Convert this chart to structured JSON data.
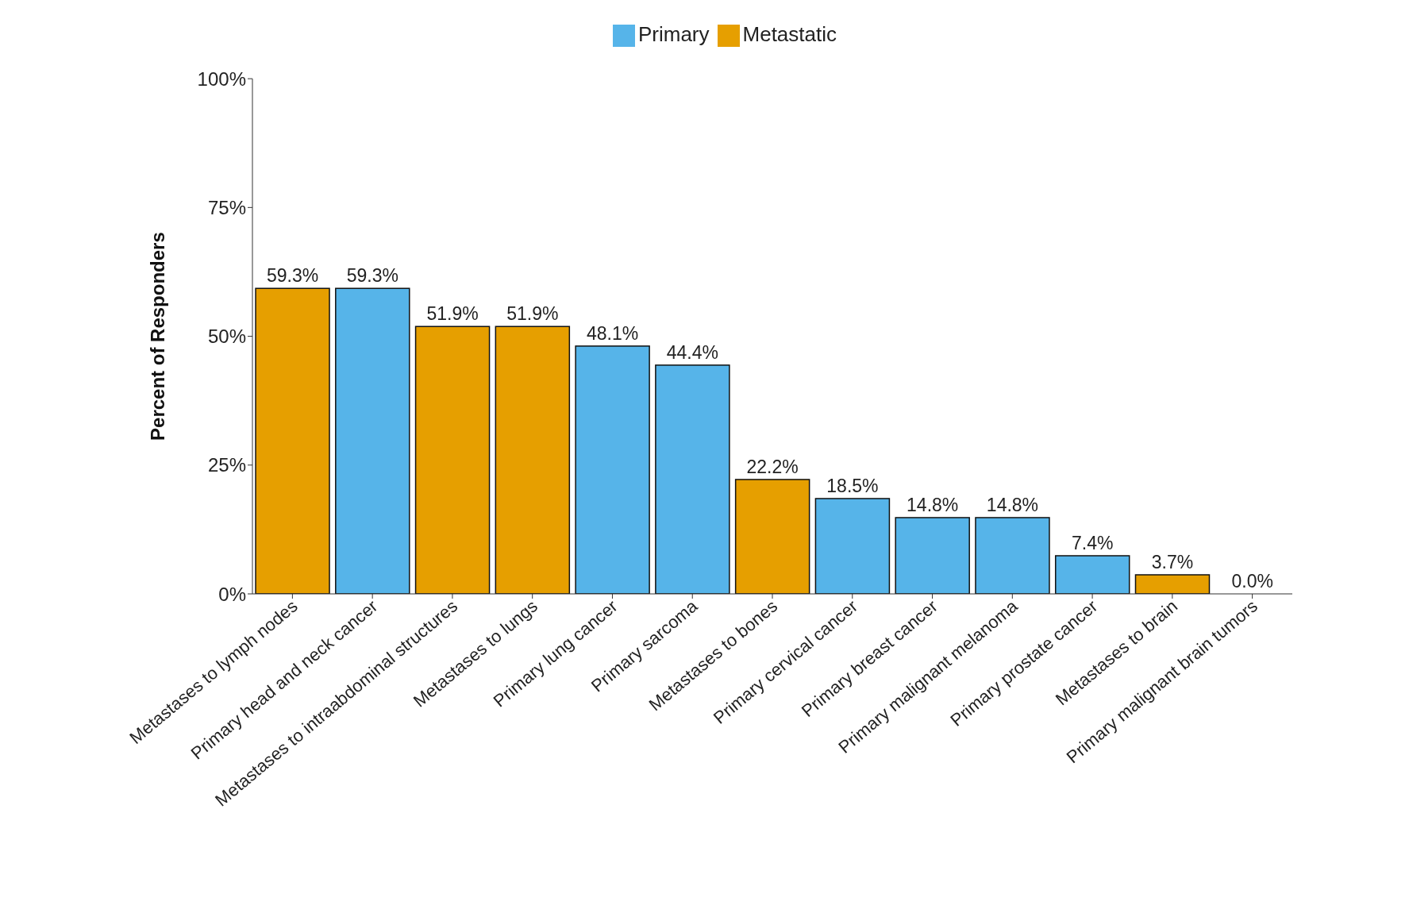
{
  "chart_data": {
    "type": "bar",
    "ylabel": "Percent of Responders",
    "categories": [
      "Metastases to lymph nodes",
      "Primary head and neck cancer",
      "Metastases to intraabdominal structures",
      "Metastases to lungs",
      "Primary lung cancer",
      "Primary sarcoma",
      "Metastases to bones",
      "Primary cervical cancer",
      "Primary breast cancer",
      "Primary malignant melanoma",
      "Primary prostate cancer",
      "Metastases to brain",
      "Primary malignant brain tumors"
    ],
    "series": [
      {
        "name": "Primary",
        "color": "#56b4e9",
        "values": [
          null,
          59.3,
          null,
          null,
          48.1,
          44.4,
          null,
          18.5,
          14.8,
          14.8,
          7.4,
          null,
          0.0
        ],
        "value_labels": [
          null,
          "59.3%",
          null,
          null,
          "48.1%",
          "44.4%",
          null,
          "18.5%",
          "14.8%",
          "14.8%",
          "7.4%",
          null,
          "0.0%"
        ]
      },
      {
        "name": "Metastatic",
        "color": "#e69f00",
        "values": [
          59.3,
          null,
          51.9,
          51.9,
          null,
          null,
          22.2,
          null,
          null,
          null,
          null,
          3.7,
          null
        ],
        "value_labels": [
          "59.3%",
          null,
          "51.9%",
          "51.9%",
          null,
          null,
          "22.2%",
          null,
          null,
          null,
          null,
          "3.7%",
          null
        ]
      }
    ],
    "stacked": true,
    "ylim": [
      0,
      100
    ],
    "yticks": [
      {
        "value": 0,
        "label": "0%"
      },
      {
        "value": 25,
        "label": "25%"
      },
      {
        "value": 50,
        "label": "50%"
      },
      {
        "value": 75,
        "label": "75%"
      },
      {
        "value": 100,
        "label": "100%"
      }
    ],
    "grid": false,
    "legend": "top"
  }
}
